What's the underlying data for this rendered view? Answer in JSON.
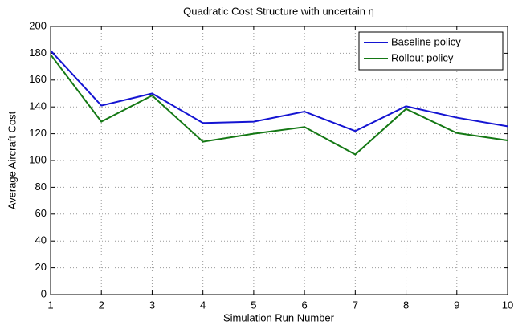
{
  "chart_data": {
    "type": "line",
    "title": "Quadratic Cost Structure with uncertain η",
    "x_label": "Simulation Run Number",
    "y_label": "Average Aircraft Cost",
    "x": [
      1,
      2,
      3,
      4,
      5,
      6,
      7,
      8,
      9,
      10
    ],
    "series": [
      {
        "name": "Baseline policy",
        "color": "#1414d2",
        "values": [
          182,
          141,
          150,
          128,
          129,
          136.5,
          122,
          140.5,
          132,
          125.5
        ]
      },
      {
        "name": "Rollout policy",
        "color": "#147814",
        "values": [
          179,
          129,
          148.5,
          114,
          120,
          125,
          104.5,
          138.5,
          120.5,
          115
        ]
      }
    ],
    "xlim": [
      1,
      10
    ],
    "xticks": [
      1,
      2,
      3,
      4,
      5,
      6,
      7,
      8,
      9,
      10
    ],
    "ylim": [
      0,
      200
    ],
    "yticks": [
      0,
      20,
      40,
      60,
      80,
      100,
      120,
      140,
      160,
      180,
      200
    ],
    "grid": true,
    "legend": "upper right"
  }
}
